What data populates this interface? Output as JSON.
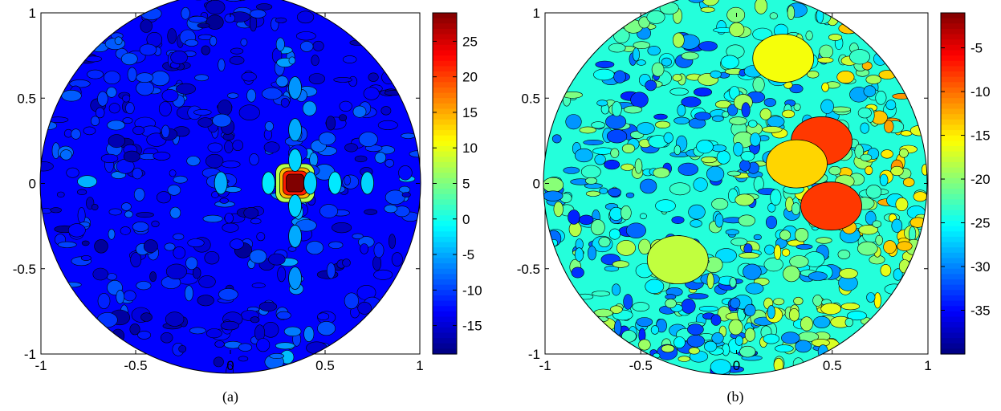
{
  "chart_data": [
    {
      "type": "heatmap",
      "caption": "(a)",
      "xlim": [
        -1,
        1
      ],
      "ylim": [
        -1,
        1
      ],
      "x_ticks": [
        -1,
        -0.5,
        0,
        0.5,
        1
      ],
      "y_ticks": [
        -1,
        -0.5,
        0,
        0.5,
        1
      ],
      "x_tick_labels": [
        "-1",
        "-0.5",
        "0",
        "0.5",
        "1"
      ],
      "y_tick_labels": [
        "-1",
        "-0.5",
        "0",
        "0.5",
        "1"
      ],
      "colorbar": {
        "range": [
          -19,
          29
        ],
        "ticks": [
          -15,
          -10,
          -5,
          0,
          5,
          10,
          15,
          20,
          25
        ],
        "tick_labels": [
          "-15",
          "-10",
          "-5",
          "0",
          "5",
          "10",
          "15",
          "20",
          "25"
        ]
      },
      "colormap": "jet",
      "domain": "unit disk",
      "background_level": -13,
      "peaks": [
        {
          "x": 0.34,
          "y": 0.0,
          "value": 29
        },
        {
          "x": 0.42,
          "y": 0.0,
          "value": -3
        },
        {
          "x": 0.55,
          "y": 0.0,
          "value": -2
        },
        {
          "x": 0.72,
          "y": 0.0,
          "value": -3
        },
        {
          "x": 0.2,
          "y": 0.0,
          "value": -2
        },
        {
          "x": -0.05,
          "y": 0.0,
          "value": -5
        },
        {
          "x": 0.34,
          "y": 0.12,
          "value": -3
        },
        {
          "x": 0.34,
          "y": -0.12,
          "value": -3
        },
        {
          "x": 0.34,
          "y": 0.28,
          "value": -5
        },
        {
          "x": 0.34,
          "y": -0.28,
          "value": -5
        },
        {
          "x": 0.34,
          "y": 0.5,
          "value": -6
        },
        {
          "x": 0.34,
          "y": -0.5,
          "value": -6
        }
      ]
    },
    {
      "type": "heatmap",
      "caption": "(b)",
      "xlim": [
        -1,
        1
      ],
      "ylim": [
        -1,
        1
      ],
      "x_ticks": [
        -1,
        -0.5,
        0,
        0.5,
        1
      ],
      "y_ticks": [
        -1,
        -0.5,
        0,
        0.5,
        1
      ],
      "x_tick_labels": [
        "-1",
        "-0.5",
        "0",
        "0.5",
        "1"
      ],
      "y_tick_labels": [
        "-1",
        "-0.5",
        "0",
        "0.5",
        "1"
      ],
      "colorbar": {
        "range": [
          -40,
          -1
        ],
        "ticks": [
          -35,
          -30,
          -25,
          -20,
          -15,
          -10,
          -5
        ],
        "tick_labels": [
          "-35",
          "-30",
          "-25",
          "-20",
          "-15",
          "-10",
          "-5"
        ]
      },
      "colormap": "jet",
      "domain": "unit disk",
      "background_level": -24,
      "peaks": [
        {
          "x": 0.45,
          "y": 0.22,
          "value": -8
        },
        {
          "x": 0.5,
          "y": -0.12,
          "value": -8
        },
        {
          "x": 0.32,
          "y": 0.1,
          "value": -14
        },
        {
          "x": 0.25,
          "y": 0.65,
          "value": -16
        },
        {
          "x": -0.3,
          "y": -0.4,
          "value": -18
        }
      ]
    }
  ]
}
